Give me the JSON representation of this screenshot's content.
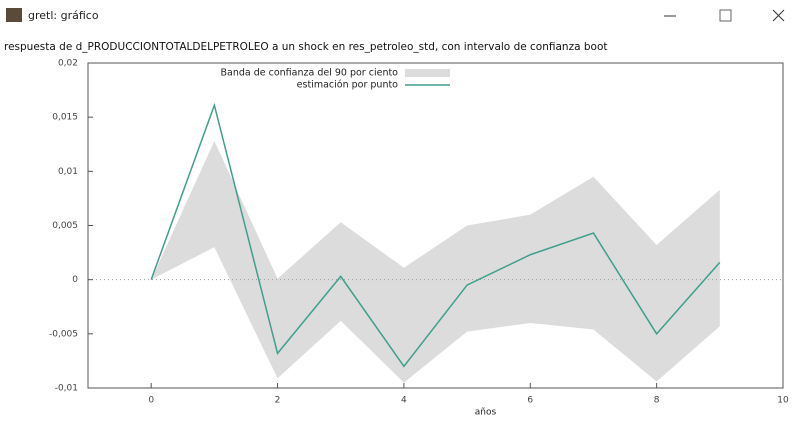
{
  "window": {
    "title": "gretl: gráfico"
  },
  "chart_data": {
    "type": "line",
    "title": "respuesta de d_PRODUCCIONTOTALDELPETROLEO a un shock en res_petroleo_std, con intervalo de confianza boot",
    "xlabel": "años",
    "x": [
      0,
      1,
      2,
      3,
      4,
      5,
      6,
      7,
      8,
      9
    ],
    "series": [
      {
        "name": "Banda de confianza del 90 por ciento",
        "type": "band",
        "color": "#dcdcdc",
        "upper": [
          0,
          0.0128,
          0.0001,
          0.0053,
          0.0011,
          0.005,
          0.006,
          0.0095,
          0.0032,
          0.0083
        ],
        "lower": [
          0,
          0.003,
          -0.0091,
          -0.0038,
          -0.0095,
          -0.0048,
          -0.004,
          -0.0046,
          -0.0094,
          -0.0043
        ]
      },
      {
        "name": "estimación por punto",
        "type": "line",
        "color": "#3f9f8c",
        "values": [
          0,
          0.0161,
          -0.0068,
          0.0003,
          -0.008,
          -0.0005,
          0.0023,
          0.0043,
          -0.005,
          0.0016
        ]
      }
    ],
    "xlim": [
      -1,
      10
    ],
    "xticks": [
      0,
      2,
      4,
      6,
      8,
      10
    ],
    "ylim": [
      -0.01,
      0.02
    ],
    "yticks": [
      {
        "value": -0.01,
        "label": "-0,01"
      },
      {
        "value": -0.005,
        "label": "-0,005"
      },
      0,
      {
        "value": 0.005,
        "label": "0,005"
      },
      {
        "value": 0.01,
        "label": "0,01"
      },
      {
        "value": 0.015,
        "label": "0,015"
      },
      {
        "value": 0.02,
        "label": "0,02"
      }
    ],
    "zero_line": true,
    "legend": "top"
  }
}
